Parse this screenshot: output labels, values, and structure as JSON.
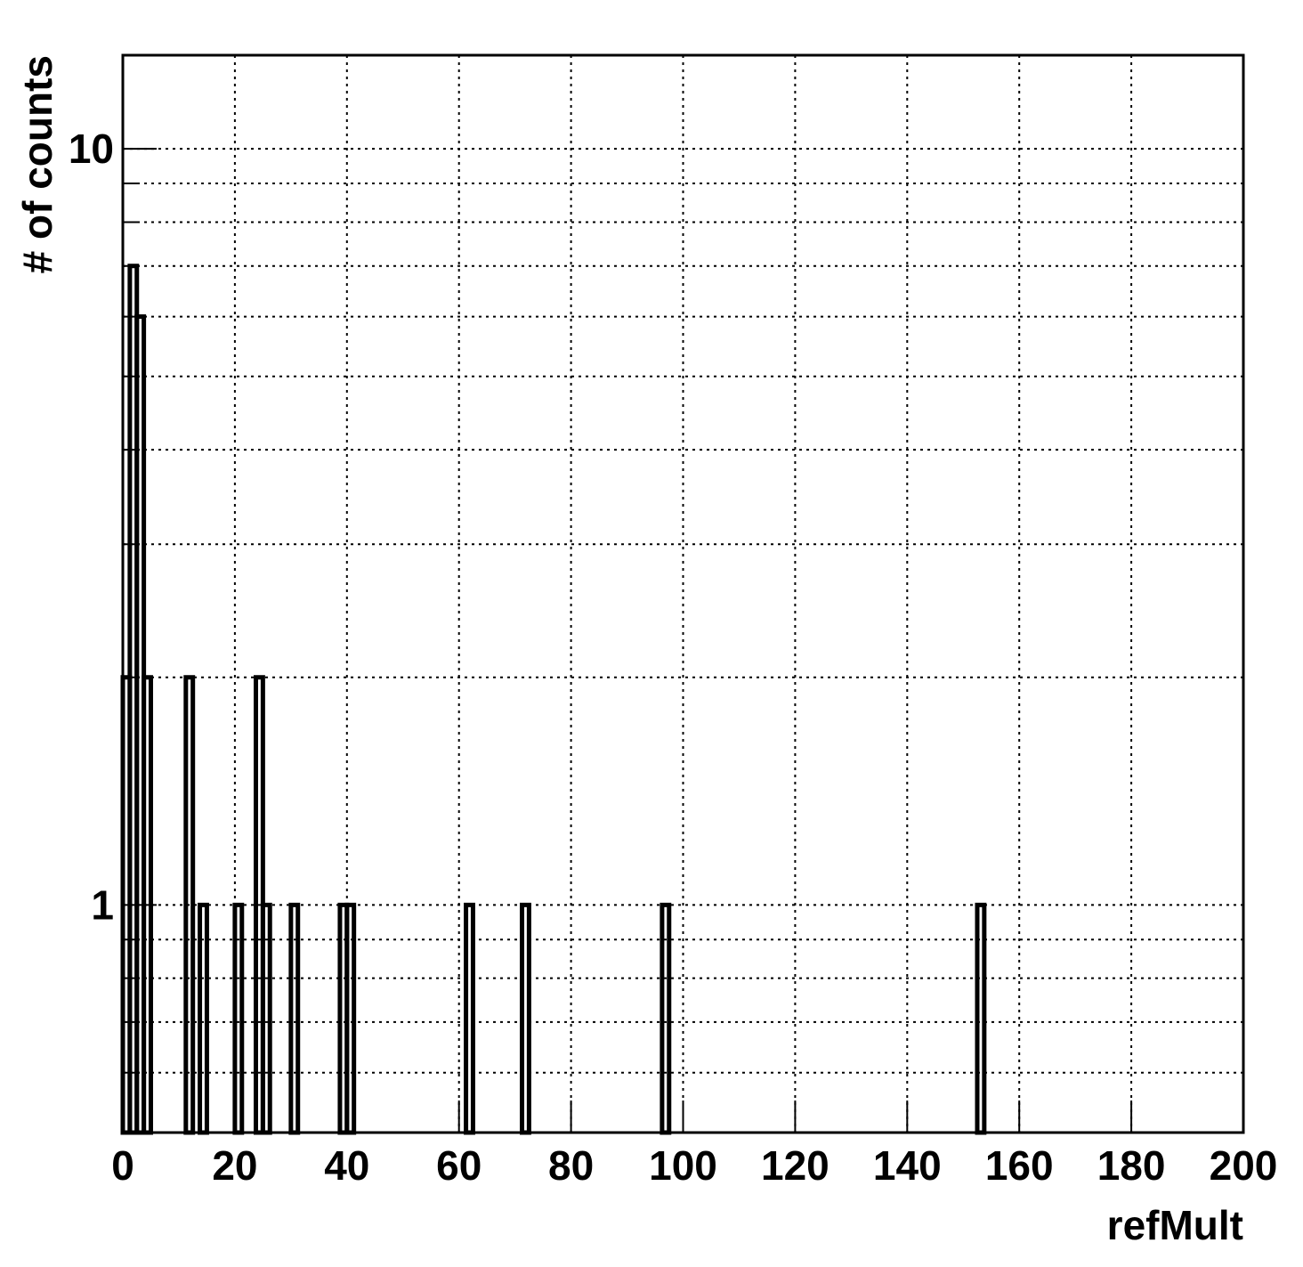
{
  "chart_data": {
    "type": "histogram",
    "xlabel": "refMult",
    "ylabel": "# of counts",
    "bins": [
      0,
      1.25,
      2.5,
      3.75,
      5,
      6.25,
      7.5,
      8.75,
      10,
      11.25,
      12.5,
      13.75,
      15,
      16.25,
      17.5,
      18.75,
      20,
      21.25,
      22.5,
      23.75,
      25,
      26.25,
      27.5,
      28.75,
      30,
      31.25,
      32.5,
      33.75,
      35,
      36.25,
      37.5,
      38.75,
      40,
      41.25,
      42.5,
      43.75,
      45,
      46.25,
      47.5,
      48.75,
      50,
      51.25,
      52.5,
      53.75,
      55,
      56.25,
      57.5,
      58.75,
      60,
      61.25,
      62.5,
      63.75,
      65,
      66.25,
      67.5,
      68.75,
      70,
      71.25,
      72.5,
      73.75,
      75,
      76.25,
      77.5,
      78.75,
      80,
      81.25,
      82.5,
      83.75,
      85,
      86.25,
      87.5,
      88.75,
      90,
      91.25,
      92.5,
      93.75,
      95,
      96.25,
      97.5,
      98.75,
      100,
      101.25,
      102.5,
      103.75,
      105,
      106.25,
      107.5,
      108.75,
      110,
      111.25,
      112.5,
      113.75,
      115,
      116.25,
      117.5,
      118.75,
      120,
      121.25,
      122.5,
      123.75,
      125,
      126.25,
      127.5,
      128.75,
      130,
      131.25,
      132.5,
      133.75,
      135,
      136.25,
      137.5,
      138.75,
      140,
      141.25,
      142.5,
      143.75,
      145,
      146.25,
      147.5,
      148.75,
      150,
      151.25,
      152.5,
      153.75,
      155,
      156.25,
      157.5,
      158.75,
      160,
      161.25,
      162.5,
      163.75,
      165,
      166.25,
      167.5,
      168.75,
      170,
      171.25,
      172.5,
      173.75,
      175,
      176.25,
      177.5,
      178.75,
      180,
      181.25,
      182.5,
      183.75,
      185,
      186.25,
      187.5,
      188.75,
      190,
      191.25,
      192.5,
      193.75,
      195,
      196.25,
      197.5,
      198.75,
      200
    ],
    "counts": [
      2,
      7,
      6,
      2,
      0,
      0,
      0,
      0,
      0,
      2,
      0,
      1,
      0,
      0,
      0,
      0,
      1,
      0,
      0,
      2,
      1,
      0,
      0,
      0,
      1,
      0,
      0,
      0,
      0,
      0,
      0,
      1,
      1,
      0,
      0,
      0,
      0,
      0,
      0,
      0,
      0,
      0,
      0,
      0,
      0,
      0,
      0,
      0,
      0,
      1,
      0,
      0,
      0,
      0,
      0,
      0,
      0,
      1,
      0,
      0,
      0,
      0,
      0,
      0,
      0,
      0,
      0,
      0,
      0,
      0,
      0,
      0,
      0,
      0,
      0,
      0,
      0,
      1,
      0,
      0,
      0,
      0,
      0,
      0,
      0,
      0,
      0,
      0,
      0,
      0,
      0,
      0,
      0,
      0,
      0,
      0,
      0,
      0,
      0,
      0,
      0,
      0,
      0,
      0,
      0,
      0,
      0,
      0,
      0,
      0,
      0,
      0,
      0,
      0,
      0,
      0,
      0,
      0,
      0,
      0,
      0,
      0,
      1,
      0,
      0,
      0,
      0,
      0,
      0,
      0,
      0,
      0,
      0,
      0,
      0,
      0,
      0,
      0,
      0,
      0,
      0,
      0,
      0,
      0,
      0,
      0,
      0,
      0,
      0,
      0,
      0,
      0,
      0,
      0,
      0,
      0,
      0,
      0,
      0,
      0
    ],
    "color": "#000000",
    "xlim": [
      0,
      200
    ],
    "xticks": [
      0,
      20,
      40,
      60,
      80,
      100,
      120,
      140,
      160,
      180,
      200
    ],
    "ylim": [
      0.5,
      13.3
    ],
    "ylog": true,
    "yticks": [
      1,
      10
    ],
    "yminorticks": [
      0.6,
      0.7,
      0.8,
      0.9,
      2,
      3,
      4,
      5,
      6,
      7,
      8,
      9
    ],
    "grid": true
  }
}
